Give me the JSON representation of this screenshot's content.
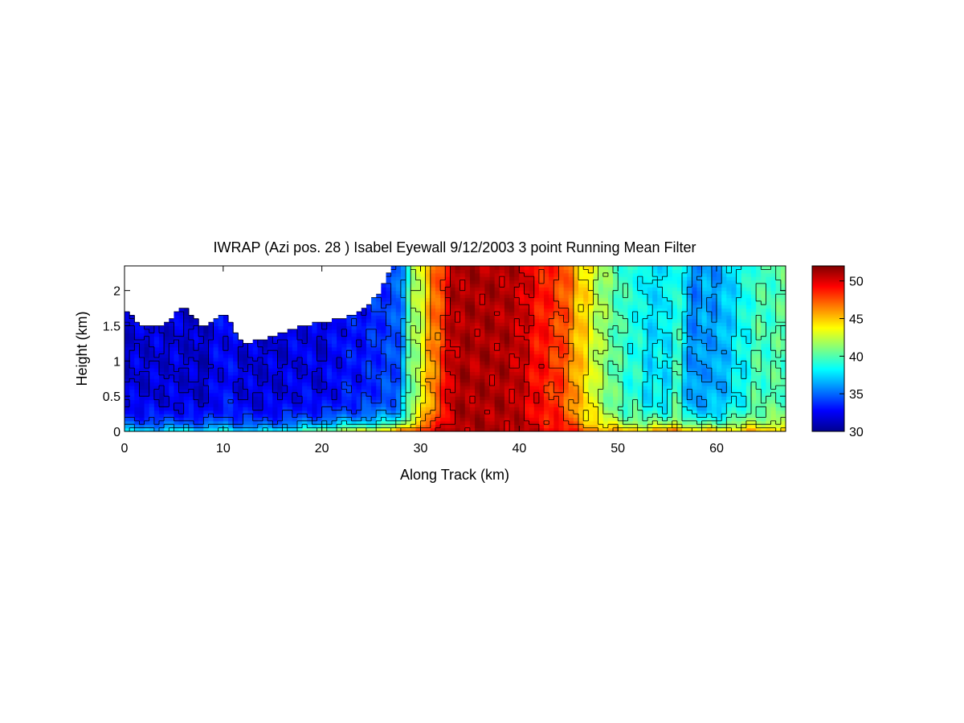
{
  "chart_data": {
    "type": "heatmap",
    "title": "IWRAP (Azi pos. 28 ) Isabel Eyewall 9/12/2003 3 point Running Mean Filter",
    "xlabel": "Along Track (km)",
    "ylabel": "Height (km)",
    "xlim": [
      0,
      67
    ],
    "ylim": [
      0,
      2.35
    ],
    "x_ticks": [
      0,
      10,
      20,
      30,
      40,
      50,
      60
    ],
    "y_ticks": [
      0,
      0.5,
      1,
      1.5,
      2
    ],
    "x_tick_labels": [
      "0",
      "10",
      "20",
      "30",
      "40",
      "50",
      "60"
    ],
    "y_tick_labels": [
      "0",
      "0.5",
      "1",
      "1.5",
      "2"
    ],
    "colorbar": {
      "min": 30,
      "max": 52,
      "ticks": [
        30,
        35,
        40,
        45,
        50
      ],
      "tick_labels": [
        "30",
        "35",
        "40",
        "45",
        "50"
      ],
      "colormap": "jet"
    },
    "contour_levels": [
      30,
      32,
      34,
      36,
      38,
      40,
      42,
      44,
      46,
      48,
      50
    ],
    "profile": {
      "along_track_km": [
        0,
        2,
        4,
        6,
        8,
        10,
        12,
        14,
        16,
        18,
        20,
        22,
        24,
        26,
        27,
        28,
        29,
        30,
        31,
        32,
        33,
        34,
        36,
        38,
        40,
        42,
        44,
        45,
        46,
        47,
        48,
        49,
        50,
        51,
        52,
        53,
        54,
        55,
        56,
        57,
        58,
        59,
        60,
        61,
        62,
        63,
        64,
        65,
        66,
        67
      ],
      "surface_value": [
        38,
        38,
        38,
        39,
        38,
        39,
        38,
        38,
        39,
        40,
        42,
        43,
        44,
        45,
        46,
        47,
        48,
        49,
        50,
        50,
        51,
        51,
        51,
        51,
        51,
        50,
        50,
        49,
        48,
        47,
        47,
        46,
        46,
        45,
        46,
        45,
        47,
        46,
        48,
        46,
        45,
        46,
        45,
        46,
        45,
        46,
        46,
        45,
        46,
        46
      ],
      "upper_value": [
        32,
        32,
        32,
        32,
        31.5,
        33,
        32,
        32,
        32,
        32.5,
        32,
        33,
        33,
        34,
        34,
        35,
        41,
        42.5,
        46,
        47.5,
        50.5,
        51,
        51,
        51,
        50.5,
        49,
        48,
        47,
        45,
        44,
        42,
        41,
        40,
        39,
        39,
        37.5,
        38,
        37.5,
        40,
        36.5,
        35.5,
        36.5,
        36,
        37,
        38,
        38.5,
        40,
        39.5,
        40,
        40
      ],
      "echo_top_km": [
        1.7,
        1.5,
        1.5,
        1.8,
        1.45,
        1.7,
        1.25,
        1.3,
        1.4,
        1.5,
        1.55,
        1.6,
        1.7,
        2.0,
        2.35,
        2.35,
        2.35,
        2.35,
        2.35,
        2.35,
        2.35,
        2.35,
        2.35,
        2.35,
        2.35,
        2.35,
        2.35,
        2.35,
        2.35,
        2.35,
        2.35,
        2.35,
        2.35,
        2.35,
        2.35,
        2.35,
        2.35,
        2.35,
        2.35,
        2.35,
        2.35,
        2.35,
        2.35,
        2.35,
        2.35,
        2.35,
        2.35,
        2.35,
        2.35,
        2.35
      ]
    }
  }
}
